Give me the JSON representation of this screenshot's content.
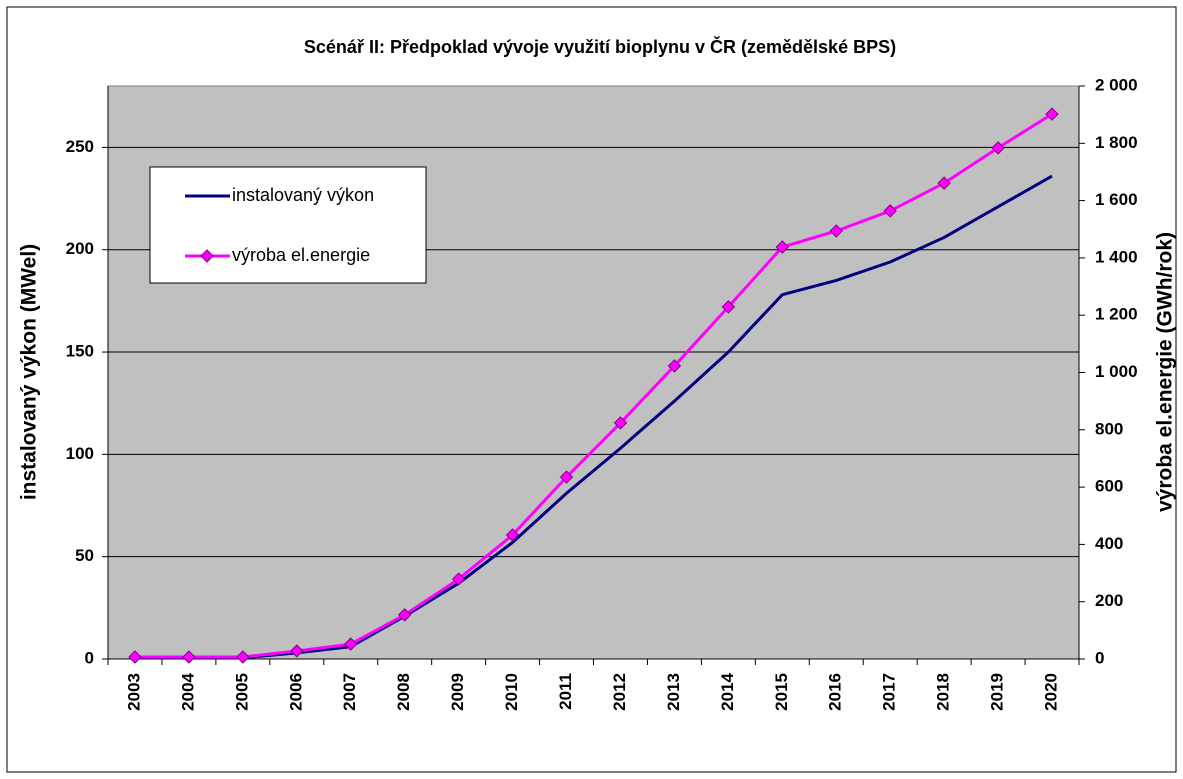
{
  "chart_data": {
    "type": "line",
    "title": "Scénář II: Předpoklad vývoje využití bioplynu v ČR (zemědělské BPS)",
    "y_label": "instalovaný výkon (MWel)",
    "y2_label": "výroba el.energie (GWh/rok)",
    "categories": [
      "2003",
      "2004",
      "2005",
      "2006",
      "2007",
      "2008",
      "2009",
      "2010",
      "2011",
      "2012",
      "2013",
      "2014",
      "2015",
      "2016",
      "2017",
      "2018",
      "2019",
      "2020"
    ],
    "series": [
      {
        "name": "instalovaný výkon",
        "color": "#000080",
        "marker": false,
        "values": [
          0.5,
          0.5,
          0.5,
          3,
          6,
          21,
          37,
          57,
          81,
          103,
          126,
          150,
          178,
          185,
          194,
          206,
          221,
          236
        ]
      },
      {
        "name": "výroba el.energie",
        "color": "#ff00ff",
        "marker": true,
        "axis": "y2",
        "values": [
          7,
          7,
          7,
          28,
          52,
          154,
          279,
          433,
          635,
          824,
          1023,
          1229,
          1438,
          1494,
          1564,
          1661,
          1784,
          1902
        ]
      }
    ],
    "ylim": [
      0,
      280
    ],
    "yticks": [
      0,
      50,
      100,
      150,
      200,
      250
    ],
    "y2lim": [
      0,
      2000
    ],
    "y2ticks": [
      0,
      200,
      400,
      600,
      800,
      {
        "value": 1000,
        "label": "1 000"
      },
      {
        "value": 1200,
        "label": "1 200"
      },
      {
        "value": 1400,
        "label": "1 400"
      },
      {
        "value": 1600,
        "label": "1 600"
      },
      {
        "value": 1800,
        "label": "1 800"
      },
      {
        "value": 2000,
        "label": "2 000"
      }
    ],
    "grid": true,
    "legend": "upper left"
  }
}
